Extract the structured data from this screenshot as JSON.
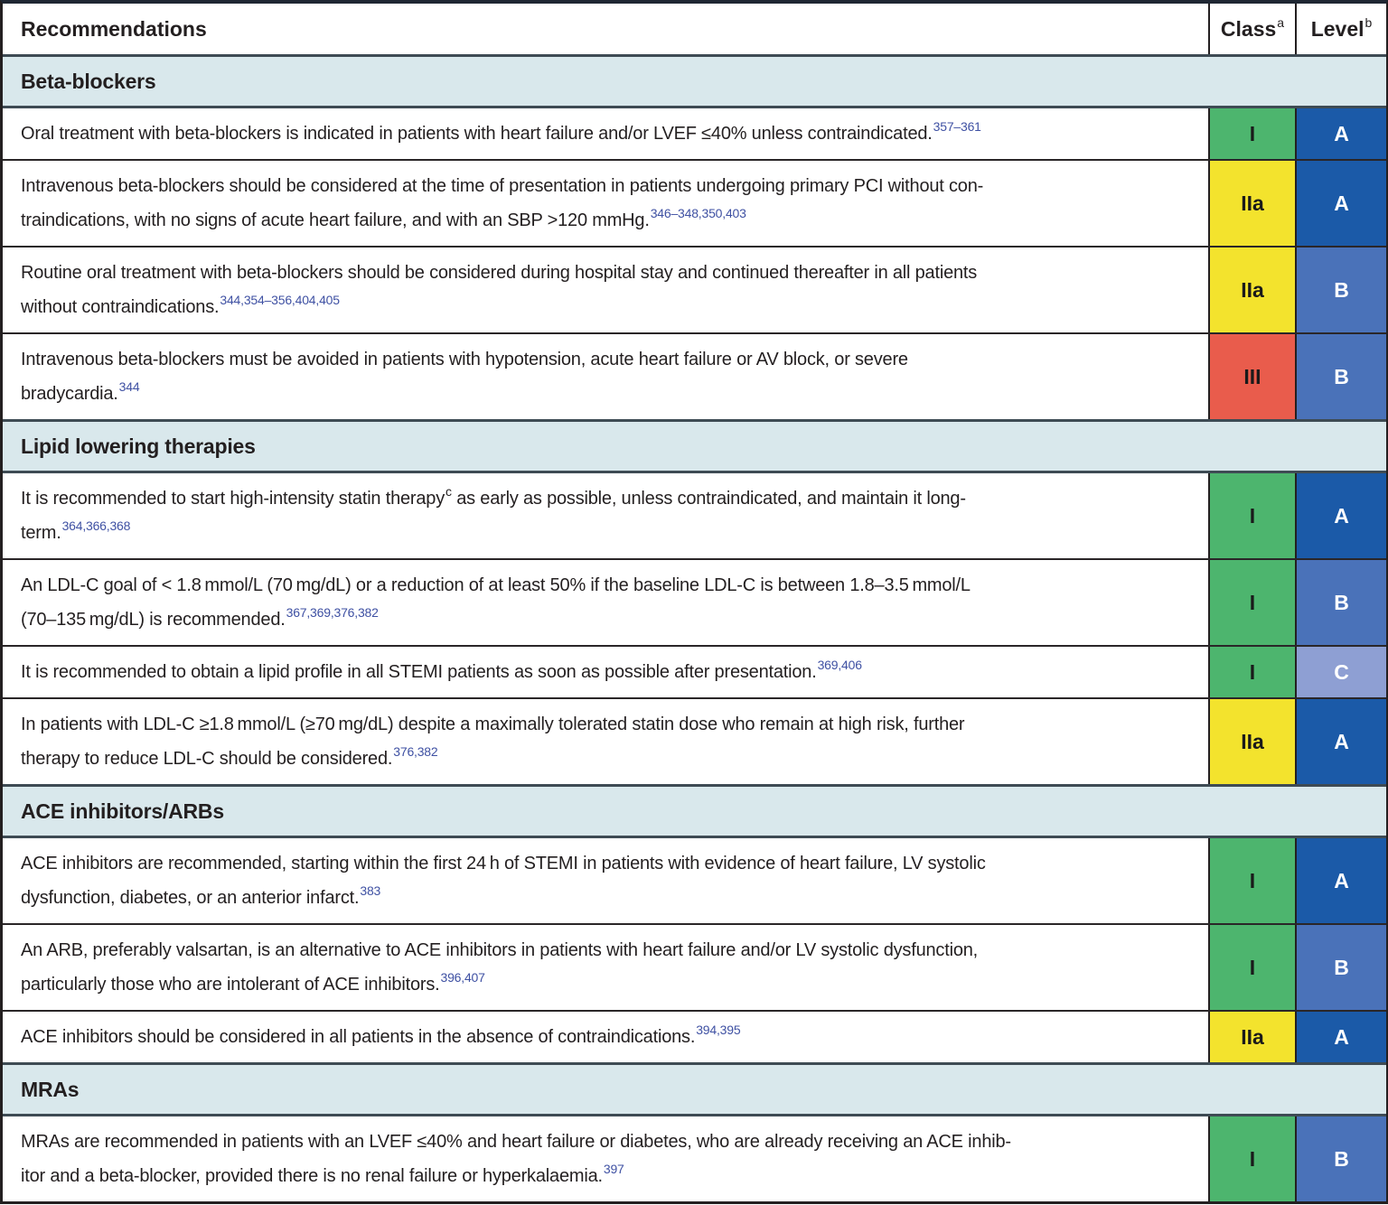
{
  "header": {
    "recommendations": "Recommendations",
    "class_label": "Class",
    "class_sup": "a",
    "level_label": "Level",
    "level_sup": "b"
  },
  "colors": {
    "class": {
      "I": "#4db56e",
      "IIa": "#f3e32d",
      "III": "#e95c4c"
    },
    "level": {
      "A": "#1b5aa8",
      "B": "#4a72b9",
      "C": "#8e9fd3"
    },
    "section_bg": "#d9e8ec",
    "reference": "#3f51a3"
  },
  "rows": [
    {
      "type": "section",
      "label": "Beta-blockers"
    },
    {
      "type": "rec",
      "class": "I",
      "level": "A",
      "lines": [
        [
          {
            "t": "Oral treatment with beta-blockers is indicated in patients with heart failure and/or LVEF ≤40% unless contraindicated."
          },
          {
            "s": "357–361",
            "k": "ref"
          }
        ]
      ]
    },
    {
      "type": "rec",
      "class": "IIa",
      "level": "A",
      "lines": [
        [
          {
            "t": "Intravenous beta-blockers should be considered at the time of presentation in patients undergoing primary PCI without con-"
          }
        ],
        [
          {
            "t": "traindications, with no signs of acute heart failure, and with an SBP >120 mmHg."
          },
          {
            "s": "346–348,350,403",
            "k": "ref"
          }
        ]
      ]
    },
    {
      "type": "rec",
      "class": "IIa",
      "level": "B",
      "lines": [
        [
          {
            "t": "Routine oral treatment with beta-blockers should be considered during hospital stay and continued thereafter in all patients"
          }
        ],
        [
          {
            "t": "without contraindications."
          },
          {
            "s": "344,354–356,404,405",
            "k": "ref"
          }
        ]
      ]
    },
    {
      "type": "rec",
      "class": "III",
      "level": "B",
      "lines": [
        [
          {
            "t": "Intravenous beta-blockers must be avoided in patients with hypotension, acute heart failure or AV block, or severe"
          }
        ],
        [
          {
            "t": "bradycardia."
          },
          {
            "s": "344",
            "k": "ref"
          }
        ]
      ]
    },
    {
      "type": "section",
      "label": "Lipid lowering therapies"
    },
    {
      "type": "rec",
      "class": "I",
      "level": "A",
      "lines": [
        [
          {
            "t": "It is recommended to start high-intensity statin therapy"
          },
          {
            "s": "c",
            "k": "fn"
          },
          {
            "t": " as early as possible, unless contraindicated, and maintain it long-"
          }
        ],
        [
          {
            "t": "term."
          },
          {
            "s": "364,366,368",
            "k": "ref"
          }
        ]
      ]
    },
    {
      "type": "rec",
      "class": "I",
      "level": "B",
      "lines": [
        [
          {
            "t": "An LDL-C goal of < 1.8 mmol/L (70 mg/dL) or a reduction of at least 50% if the baseline LDL-C is between 1.8–3.5 mmol/L"
          }
        ],
        [
          {
            "t": "(70–135 mg/dL) is recommended."
          },
          {
            "s": "367,369,376,382",
            "k": "ref"
          }
        ]
      ]
    },
    {
      "type": "rec",
      "class": "I",
      "level": "C",
      "lines": [
        [
          {
            "t": "It is recommended to obtain a lipid profile in all STEMI patients as soon as possible after presentation."
          },
          {
            "s": "369,406",
            "k": "ref"
          }
        ]
      ]
    },
    {
      "type": "rec",
      "class": "IIa",
      "level": "A",
      "lines": [
        [
          {
            "t": "In patients with LDL-C ≥1.8 mmol/L (≥70 mg/dL) despite a maximally tolerated statin dose who remain at high risk, further"
          }
        ],
        [
          {
            "t": "therapy to reduce LDL-C should be considered."
          },
          {
            "s": "376,382",
            "k": "ref"
          }
        ]
      ]
    },
    {
      "type": "section",
      "label": "ACE inhibitors/ARBs"
    },
    {
      "type": "rec",
      "class": "I",
      "level": "A",
      "lines": [
        [
          {
            "t": "ACE inhibitors are recommended, starting within the first 24 h of STEMI in patients with evidence of heart failure, LV systolic"
          }
        ],
        [
          {
            "t": "dysfunction, diabetes, or an anterior infarct."
          },
          {
            "s": "383",
            "k": "ref"
          }
        ]
      ]
    },
    {
      "type": "rec",
      "class": "I",
      "level": "B",
      "lines": [
        [
          {
            "t": "An ARB, preferably valsartan, is an alternative to ACE inhibitors in patients with heart failure and/or LV systolic dysfunction,"
          }
        ],
        [
          {
            "t": "particularly those who are intolerant of ACE inhibitors."
          },
          {
            "s": "396,407",
            "k": "ref"
          }
        ]
      ]
    },
    {
      "type": "rec",
      "class": "IIa",
      "level": "A",
      "lines": [
        [
          {
            "t": "ACE inhibitors should be considered in all patients in the absence of contraindications."
          },
          {
            "s": "394,395",
            "k": "ref"
          }
        ]
      ]
    },
    {
      "type": "section",
      "label": "MRAs"
    },
    {
      "type": "rec",
      "class": "I",
      "level": "B",
      "lines": [
        [
          {
            "t": "MRAs are recommended in patients with an LVEF ≤40% and heart failure or diabetes, who are already receiving an ACE inhib-"
          }
        ],
        [
          {
            "t": "itor and a beta-blocker, provided there is no renal failure or hyperkalaemia."
          },
          {
            "s": "397",
            "k": "ref"
          }
        ]
      ]
    }
  ]
}
